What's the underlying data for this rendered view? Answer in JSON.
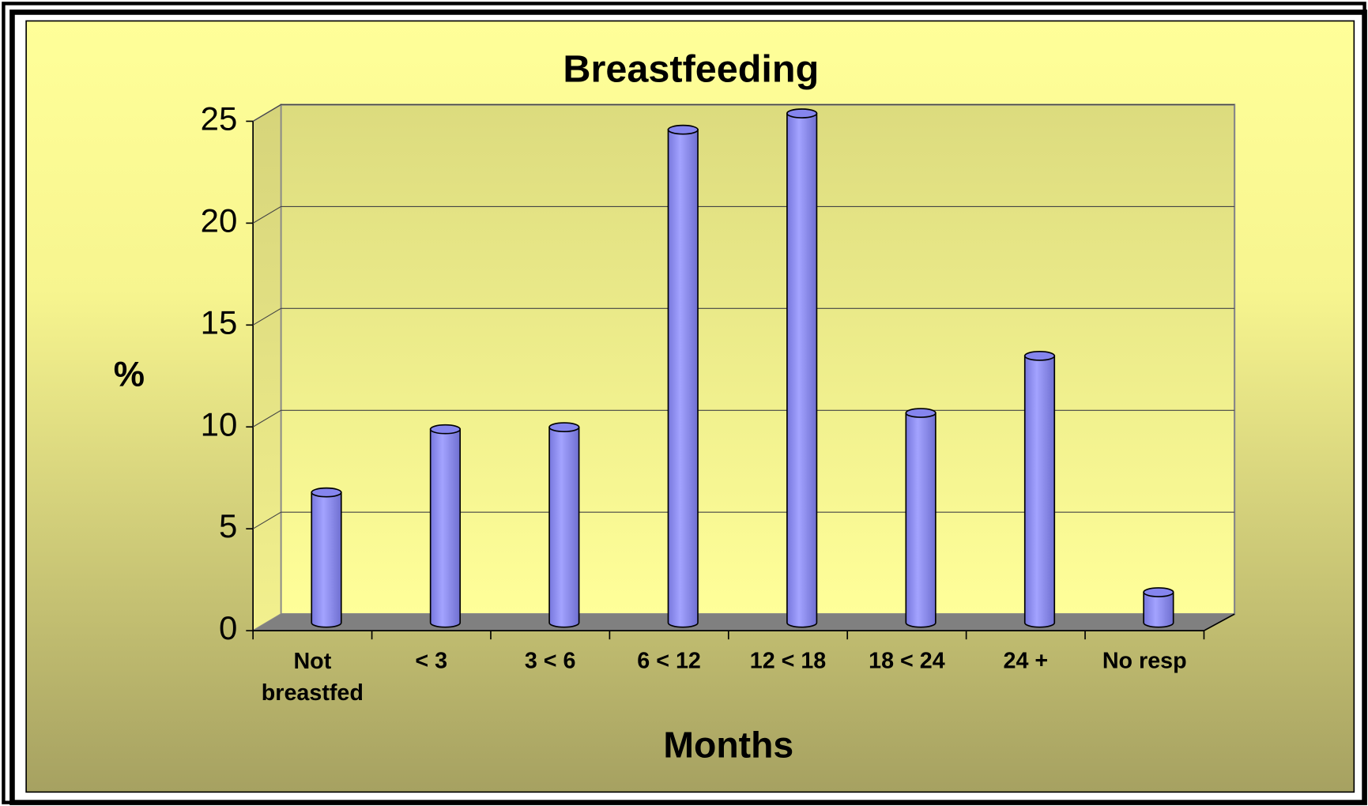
{
  "chart_data": {
    "type": "bar3d",
    "title": "Breastfeeding",
    "x_label": "Months",
    "y_label": "%",
    "categories": [
      "Not breastfed",
      "< 3",
      "3 < 6",
      "6 < 12",
      "12 < 18",
      "18 < 24",
      "24 +",
      "No resp"
    ],
    "values": [
      6.4,
      9.5,
      9.6,
      24.2,
      25.0,
      10.3,
      13.1,
      1.5
    ],
    "color": "#9999ff",
    "ylim": [
      0,
      25
    ],
    "yticks": [
      0,
      5,
      10,
      15,
      20,
      25
    ],
    "grid": true
  }
}
